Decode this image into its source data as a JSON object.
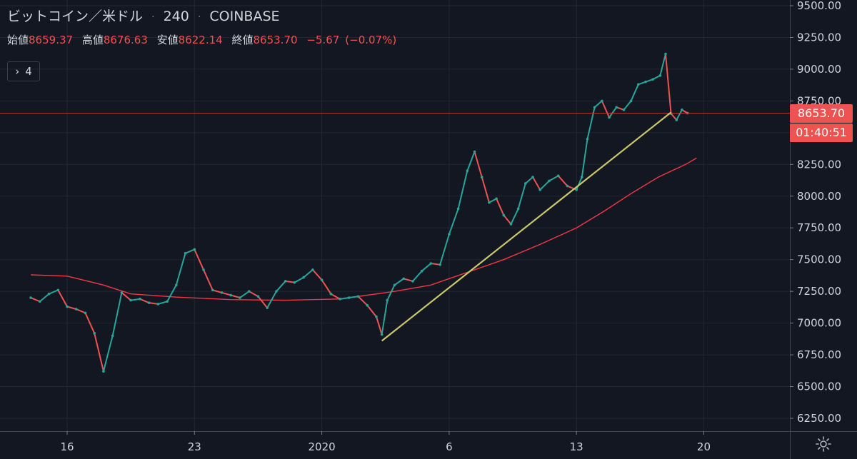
{
  "header": {
    "symbol": "ビットコイン／米ドル",
    "interval": "240",
    "exchange": "COINBASE",
    "open_label": "始値",
    "open_value": "8659.37",
    "high_label": "高値",
    "high_value": "8676.63",
    "low_label": "安値",
    "low_value": "8622.14",
    "close_label": "終値",
    "close_value": "8653.70",
    "change": "−5.67",
    "change_pct": "(−0.07%)"
  },
  "indicator_toggle": {
    "chevron": "›",
    "count": "4"
  },
  "price_axis": {
    "ticks": [
      "9500.00",
      "9250.00",
      "9000.00",
      "8750.00",
      "8500.00",
      "8250.00",
      "8000.00",
      "7750.00",
      "7500.00",
      "7250.00",
      "7000.00",
      "6750.00",
      "6500.00",
      "6250.00"
    ]
  },
  "last_price_label": "8653.70",
  "countdown_label": "01:40:51",
  "colors": {
    "background": "#131722",
    "up": "#26a69a",
    "down": "#ef5350",
    "ma": "#f23645",
    "trendline": "#c9c86a",
    "grid": "#232733"
  },
  "chart_data": {
    "type": "line",
    "symbol": "ビットコイン／米ドル",
    "ylim": [
      6100,
      9580
    ],
    "x_tick_labels": [
      "16",
      "23",
      "2020",
      "6",
      "13",
      "20"
    ],
    "price_series": [
      {
        "day": 14.0,
        "v": 7200
      },
      {
        "day": 14.5,
        "v": 7170
      },
      {
        "day": 15.0,
        "v": 7230
      },
      {
        "day": 15.5,
        "v": 7260
      },
      {
        "day": 16.0,
        "v": 7130
      },
      {
        "day": 16.5,
        "v": 7110
      },
      {
        "day": 17.0,
        "v": 7080
      },
      {
        "day": 17.5,
        "v": 6920
      },
      {
        "day": 18.0,
        "v": 6620
      },
      {
        "day": 18.5,
        "v": 6900
      },
      {
        "day": 19.0,
        "v": 7240
      },
      {
        "day": 19.5,
        "v": 7180
      },
      {
        "day": 20.0,
        "v": 7190
      },
      {
        "day": 20.5,
        "v": 7160
      },
      {
        "day": 21.0,
        "v": 7150
      },
      {
        "day": 21.5,
        "v": 7170
      },
      {
        "day": 22.0,
        "v": 7300
      },
      {
        "day": 22.5,
        "v": 7550
      },
      {
        "day": 23.0,
        "v": 7580
      },
      {
        "day": 23.5,
        "v": 7420
      },
      {
        "day": 24.0,
        "v": 7260
      },
      {
        "day": 24.5,
        "v": 7240
      },
      {
        "day": 25.0,
        "v": 7220
      },
      {
        "day": 25.5,
        "v": 7200
      },
      {
        "day": 26.0,
        "v": 7250
      },
      {
        "day": 26.5,
        "v": 7210
      },
      {
        "day": 27.0,
        "v": 7120
      },
      {
        "day": 27.5,
        "v": 7250
      },
      {
        "day": 28.0,
        "v": 7330
      },
      {
        "day": 28.5,
        "v": 7320
      },
      {
        "day": 29.0,
        "v": 7360
      },
      {
        "day": 29.5,
        "v": 7420
      },
      {
        "day": 30.0,
        "v": 7340
      },
      {
        "day": 30.5,
        "v": 7230
      },
      {
        "day": 31.0,
        "v": 7190
      },
      {
        "day": 31.5,
        "v": 7200
      },
      {
        "day": 32.0,
        "v": 7210
      },
      {
        "day": 32.5,
        "v": 7140
      },
      {
        "day": 33.0,
        "v": 7050
      },
      {
        "day": 33.3,
        "v": 6910
      },
      {
        "day": 33.6,
        "v": 7180
      },
      {
        "day": 34.0,
        "v": 7300
      },
      {
        "day": 34.5,
        "v": 7350
      },
      {
        "day": 35.0,
        "v": 7330
      },
      {
        "day": 35.5,
        "v": 7410
      },
      {
        "day": 36.0,
        "v": 7470
      },
      {
        "day": 36.5,
        "v": 7460
      },
      {
        "day": 37.0,
        "v": 7700
      },
      {
        "day": 37.5,
        "v": 7900
      },
      {
        "day": 38.0,
        "v": 8200
      },
      {
        "day": 38.4,
        "v": 8350
      },
      {
        "day": 38.8,
        "v": 8150
      },
      {
        "day": 39.2,
        "v": 7950
      },
      {
        "day": 39.6,
        "v": 7980
      },
      {
        "day": 40.0,
        "v": 7850
      },
      {
        "day": 40.4,
        "v": 7780
      },
      {
        "day": 40.8,
        "v": 7900
      },
      {
        "day": 41.2,
        "v": 8100
      },
      {
        "day": 41.6,
        "v": 8150
      },
      {
        "day": 42.0,
        "v": 8050
      },
      {
        "day": 42.5,
        "v": 8120
      },
      {
        "day": 43.0,
        "v": 8160
      },
      {
        "day": 43.5,
        "v": 8080
      },
      {
        "day": 44.0,
        "v": 8050
      },
      {
        "day": 44.3,
        "v": 8150
      },
      {
        "day": 44.6,
        "v": 8450
      },
      {
        "day": 45.0,
        "v": 8700
      },
      {
        "day": 45.4,
        "v": 8750
      },
      {
        "day": 45.8,
        "v": 8620
      },
      {
        "day": 46.2,
        "v": 8700
      },
      {
        "day": 46.6,
        "v": 8680
      },
      {
        "day": 47.0,
        "v": 8750
      },
      {
        "day": 47.4,
        "v": 8880
      },
      {
        "day": 47.8,
        "v": 8900
      },
      {
        "day": 48.2,
        "v": 8920
      },
      {
        "day": 48.6,
        "v": 8950
      },
      {
        "day": 48.9,
        "v": 9120
      },
      {
        "day": 49.2,
        "v": 8650
      },
      {
        "day": 49.5,
        "v": 8600
      },
      {
        "day": 49.8,
        "v": 8680
      },
      {
        "day": 50.1,
        "v": 8654
      }
    ],
    "moving_average": [
      {
        "day": 14.0,
        "v": 7380
      },
      {
        "day": 16.0,
        "v": 7370
      },
      {
        "day": 18.0,
        "v": 7300
      },
      {
        "day": 19.5,
        "v": 7230
      },
      {
        "day": 22.0,
        "v": 7205
      },
      {
        "day": 25.0,
        "v": 7185
      },
      {
        "day": 28.0,
        "v": 7180
      },
      {
        "day": 31.0,
        "v": 7190
      },
      {
        "day": 34.0,
        "v": 7250
      },
      {
        "day": 36.0,
        "v": 7300
      },
      {
        "day": 38.0,
        "v": 7400
      },
      {
        "day": 40.0,
        "v": 7500
      },
      {
        "day": 42.0,
        "v": 7620
      },
      {
        "day": 44.0,
        "v": 7750
      },
      {
        "day": 45.5,
        "v": 7880
      },
      {
        "day": 47.0,
        "v": 8020
      },
      {
        "day": 48.5,
        "v": 8150
      },
      {
        "day": 50.0,
        "v": 8250
      },
      {
        "day": 50.6,
        "v": 8300
      }
    ],
    "trendline": [
      {
        "day": 33.3,
        "v": 6860
      },
      {
        "day": 49.2,
        "v": 8660
      }
    ],
    "last_price": 8653.7
  }
}
